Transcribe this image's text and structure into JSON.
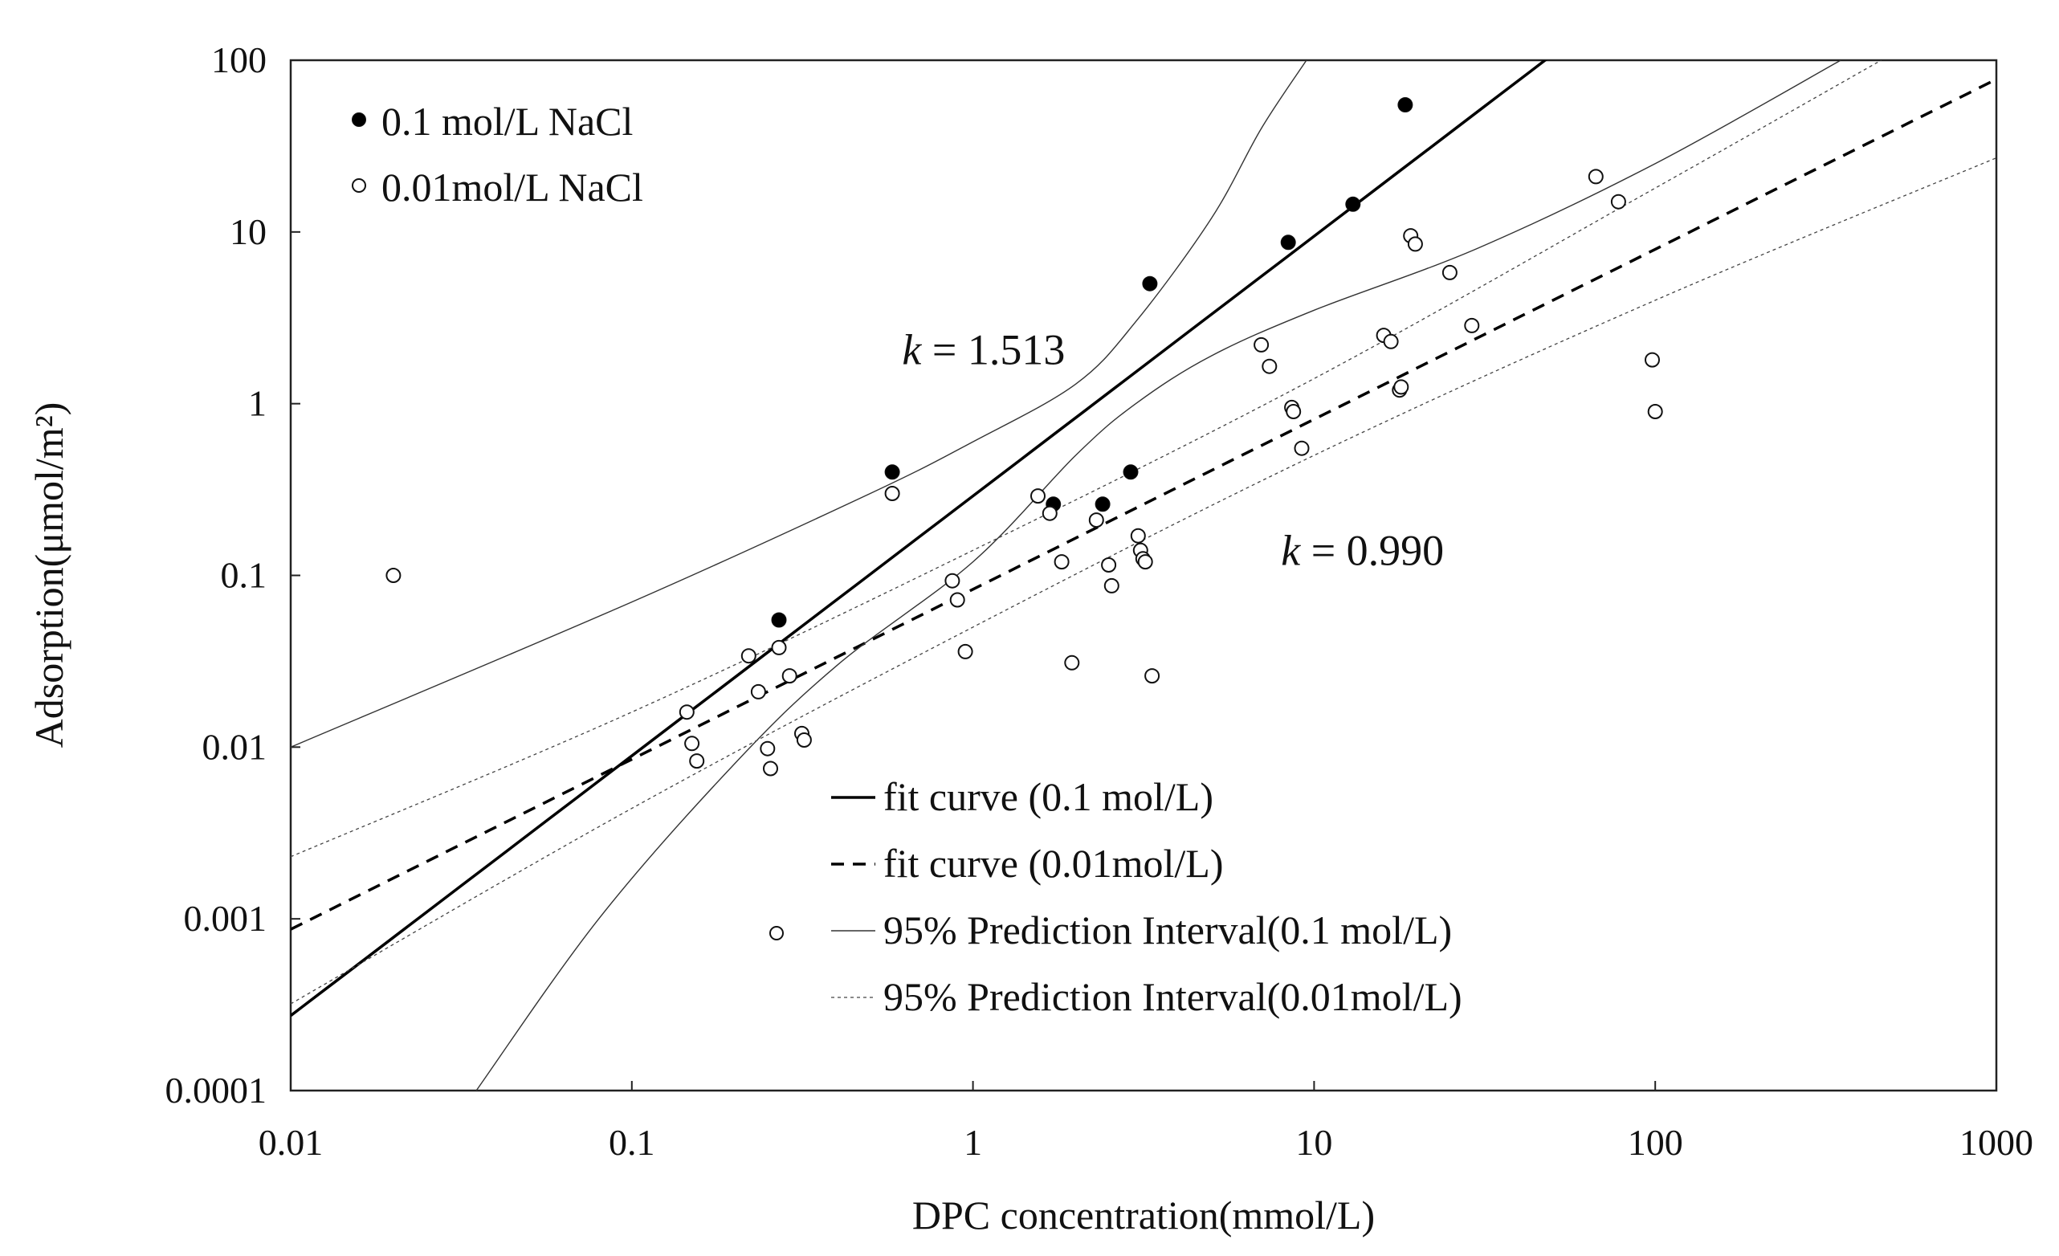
{
  "chart_data": {
    "type": "scatter",
    "xscale": "log",
    "yscale": "log",
    "xlabel": "DPC concentration(mmol/L)",
    "ylabel": "Adsorption(μmol/m²)",
    "xlim": [
      0.01,
      1000
    ],
    "ylim": [
      0.0001,
      100
    ],
    "x_ticks": [
      0.01,
      0.1,
      1,
      10,
      100,
      1000
    ],
    "y_ticks": [
      0.0001,
      0.001,
      0.01,
      0.1,
      1,
      10,
      100
    ],
    "x_tick_labels": [
      "0.01",
      "0.1",
      "1",
      "10",
      "100",
      "1000"
    ],
    "y_tick_labels": [
      "0.0001",
      "0.001",
      "0.01",
      "0.1",
      "1",
      "10",
      "100"
    ],
    "series": [
      {
        "name": "0.1  mol/L NaCl",
        "marker": "filled-circle",
        "points": [
          [
            0.27,
            0.055
          ],
          [
            0.58,
            0.4
          ],
          [
            1.72,
            0.26
          ],
          [
            2.4,
            0.26
          ],
          [
            2.9,
            0.4
          ],
          [
            3.3,
            5.0
          ],
          [
            8.4,
            8.7
          ],
          [
            13.0,
            14.5
          ],
          [
            18.5,
            55
          ]
        ]
      },
      {
        "name": "0.01mol/L NaCl",
        "marker": "open-circle",
        "points": [
          [
            0.02,
            0.1
          ],
          [
            0.145,
            0.016
          ],
          [
            0.15,
            0.0105
          ],
          [
            0.155,
            0.0083
          ],
          [
            0.22,
            0.034
          ],
          [
            0.235,
            0.021
          ],
          [
            0.25,
            0.0098
          ],
          [
            0.255,
            0.0075
          ],
          [
            0.27,
            0.038
          ],
          [
            0.29,
            0.026
          ],
          [
            0.315,
            0.012
          ],
          [
            0.32,
            0.011
          ],
          [
            0.58,
            0.3
          ],
          [
            0.87,
            0.093
          ],
          [
            0.9,
            0.072
          ],
          [
            0.95,
            0.036
          ],
          [
            1.55,
            0.29
          ],
          [
            1.68,
            0.23
          ],
          [
            1.82,
            0.12
          ],
          [
            1.95,
            0.031
          ],
          [
            2.3,
            0.21
          ],
          [
            2.5,
            0.115
          ],
          [
            2.55,
            0.087
          ],
          [
            3.05,
            0.17
          ],
          [
            3.1,
            0.14
          ],
          [
            3.15,
            0.125
          ],
          [
            3.2,
            0.12
          ],
          [
            3.35,
            0.026
          ],
          [
            7.0,
            2.2
          ],
          [
            7.4,
            1.65
          ],
          [
            8.6,
            0.95
          ],
          [
            8.7,
            0.9
          ],
          [
            9.2,
            0.55
          ],
          [
            16.0,
            2.5
          ],
          [
            16.8,
            2.3
          ],
          [
            17.8,
            1.2
          ],
          [
            18.0,
            1.25
          ],
          [
            19.2,
            9.5
          ],
          [
            19.8,
            8.5
          ],
          [
            25.0,
            5.8
          ],
          [
            29.0,
            2.85
          ],
          [
            67.0,
            21.0
          ],
          [
            78.0,
            15.0
          ],
          [
            98.0,
            1.8
          ],
          [
            100.0,
            0.9
          ]
        ]
      }
    ],
    "fits": [
      {
        "name": "fit curve (0.1  mol/L)",
        "style": "solid-thick",
        "slope": 1.513,
        "y_at_x1": 0.29
      },
      {
        "name": "fit curve (0.01mol/L)",
        "style": "dashed-thick",
        "slope": 0.99,
        "y_at_x1": 0.083
      }
    ],
    "prediction_intervals": [
      {
        "name": "95% Prediction Interval(0.1  mol/L)",
        "style": "thin-solid",
        "upper": [
          [
            0.01,
            0.01
          ],
          [
            0.1,
            0.07
          ],
          [
            0.5,
            0.3
          ],
          [
            1,
            0.6
          ],
          [
            2,
            1.3
          ],
          [
            3,
            3.0
          ],
          [
            5,
            12
          ],
          [
            7,
            40
          ],
          [
            9.5,
            100
          ]
        ],
        "lower": [
          [
            0.035,
            0.0001
          ],
          [
            0.08,
            0.001
          ],
          [
            0.2,
            0.008
          ],
          [
            0.4,
            0.03
          ],
          [
            1,
            0.12
          ],
          [
            2,
            0.5
          ],
          [
            3,
            1.0
          ],
          [
            5,
            1.9
          ],
          [
            10,
            3.5
          ],
          [
            30,
            8
          ],
          [
            100,
            25
          ],
          [
            350,
            100
          ]
        ]
      },
      {
        "name": "95% Prediction Interval(0.01mol/L)",
        "style": "thin-dotted",
        "upper": [
          [
            0.01,
            0.0023
          ],
          [
            0.1,
            0.016
          ],
          [
            1,
            0.14
          ],
          [
            10,
            1.4
          ],
          [
            100,
            18
          ],
          [
            460,
            100
          ]
        ],
        "lower": [
          [
            0.01,
            0.00032
          ],
          [
            0.1,
            0.0044
          ],
          [
            1,
            0.05
          ],
          [
            10,
            0.5
          ],
          [
            100,
            4
          ],
          [
            1000,
            27
          ]
        ]
      }
    ],
    "annotations": [
      {
        "prefix": "k",
        "text": " = 1.513",
        "x": 0.62,
        "y": 1.7
      },
      {
        "prefix": "k",
        "text": " = 0.990",
        "x": 8.0,
        "y": 0.115
      }
    ],
    "legend_top": [
      {
        "label": "0.1  mol/L NaCl",
        "marker": "filled-circle"
      },
      {
        "label": "0.01mol/L NaCl",
        "marker": "open-circle"
      }
    ],
    "legend_bottom": [
      {
        "label": "fit curve (0.1  mol/L)",
        "style": "solid-thick"
      },
      {
        "label": "fit curve (0.01mol/L)",
        "style": "dashed-thick"
      },
      {
        "label": "95% Prediction Interval(0.1  mol/L)",
        "style": "thin-solid",
        "marker": "open-circle"
      },
      {
        "label": "95% Prediction Interval(0.01mol/L)",
        "style": "thin-dotted"
      }
    ]
  }
}
